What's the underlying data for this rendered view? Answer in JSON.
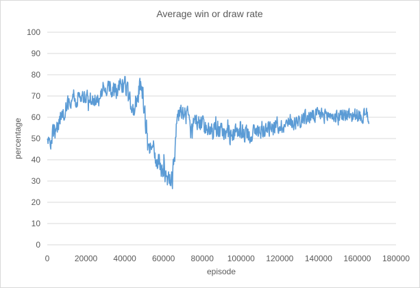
{
  "chart_data": {
    "type": "line",
    "title": "Average win or draw rate",
    "xlabel": "episode",
    "ylabel": "percentage",
    "xlim": [
      0,
      180000
    ],
    "ylim": [
      0,
      100
    ],
    "x_ticks": [
      0,
      20000,
      40000,
      60000,
      80000,
      100000,
      120000,
      140000,
      160000,
      180000
    ],
    "y_ticks": [
      0,
      10,
      20,
      30,
      40,
      50,
      60,
      70,
      80,
      90,
      100
    ],
    "grid": true,
    "legend": "none",
    "line_color": "#5b9bd5",
    "x_step": 200,
    "series": [
      {
        "name": "win or draw rate",
        "x_start": 0,
        "x_end": 166000,
        "anchors": [
          [
            0,
            50
          ],
          [
            1500,
            47
          ],
          [
            3000,
            52
          ],
          [
            5000,
            54
          ],
          [
            7000,
            60
          ],
          [
            9000,
            64
          ],
          [
            11000,
            66
          ],
          [
            13000,
            70
          ],
          [
            15000,
            69
          ],
          [
            18000,
            70
          ],
          [
            20000,
            69
          ],
          [
            22000,
            68
          ],
          [
            24000,
            69
          ],
          [
            26000,
            68
          ],
          [
            28000,
            72
          ],
          [
            30000,
            75
          ],
          [
            32000,
            74
          ],
          [
            34000,
            73
          ],
          [
            36000,
            72
          ],
          [
            38000,
            75
          ],
          [
            40000,
            76
          ],
          [
            42000,
            68
          ],
          [
            44000,
            63
          ],
          [
            46000,
            68
          ],
          [
            48000,
            75
          ],
          [
            49500,
            70
          ],
          [
            51000,
            55
          ],
          [
            53000,
            48
          ],
          [
            55000,
            43
          ],
          [
            57000,
            40
          ],
          [
            59000,
            36
          ],
          [
            61000,
            34
          ],
          [
            63000,
            33
          ],
          [
            64500,
            30
          ],
          [
            66000,
            45
          ],
          [
            67000,
            60
          ],
          [
            69000,
            63
          ],
          [
            72000,
            60
          ],
          [
            76000,
            57
          ],
          [
            80000,
            56
          ],
          [
            85000,
            55
          ],
          [
            90000,
            53
          ],
          [
            95000,
            52
          ],
          [
            100000,
            53
          ],
          [
            105000,
            52
          ],
          [
            110000,
            54
          ],
          [
            115000,
            55
          ],
          [
            120000,
            56
          ],
          [
            125000,
            57
          ],
          [
            130000,
            59
          ],
          [
            135000,
            60
          ],
          [
            140000,
            61
          ],
          [
            145000,
            61
          ],
          [
            150000,
            60
          ],
          [
            155000,
            61
          ],
          [
            160000,
            61
          ],
          [
            163000,
            60
          ],
          [
            166000,
            61
          ]
        ],
        "noise_bands": [
          [
            0,
            6
          ],
          [
            10000,
            6
          ],
          [
            28000,
            5
          ],
          [
            40000,
            7
          ],
          [
            52000,
            7
          ],
          [
            64000,
            8
          ],
          [
            67000,
            6
          ],
          [
            90000,
            6
          ],
          [
            130000,
            5
          ],
          [
            166000,
            5
          ]
        ],
        "range": [
          22,
          86
        ]
      }
    ]
  }
}
